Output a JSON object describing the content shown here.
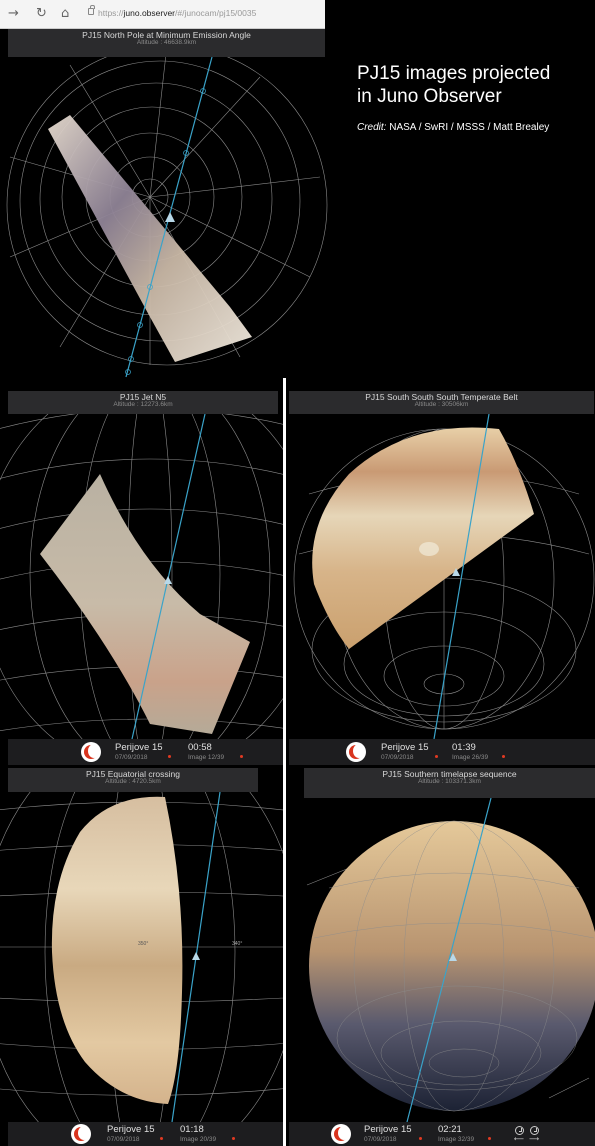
{
  "browser": {
    "back_icon": "→",
    "reload_icon": "↻",
    "home_icon": "⌂",
    "url_scheme": "https://",
    "url_host": "juno.observer",
    "url_path": "/#/junocam/pj15/0035"
  },
  "annotation": {
    "title_line1": "PJ15 images projected",
    "title_line2": "in Juno Observer",
    "credit_label": "Credit:",
    "credit_text": " NASA / SwRI / MSSS / Matt Brealey"
  },
  "panels": [
    {
      "title": "PJ15 North Pole at Minimum Emission Angle",
      "altitude": "Altitude : 46638.9km"
    },
    {
      "title": "PJ15 Jet N5",
      "altitude": "Altitude : 12273.6km",
      "footer": {
        "perijove": "Perijove 15",
        "date": "07/09/2018",
        "time": "00:58",
        "image": "Image 12/39"
      }
    },
    {
      "title": "PJ15 South South South Temperate Belt",
      "altitude": "Altitude : 30506km",
      "footer": {
        "perijove": "Perijove 15",
        "date": "07/09/2018",
        "time": "01:39",
        "image": "Image 26/39"
      }
    },
    {
      "title": "PJ15 Equatorial crossing",
      "altitude": "Altitude : 4720.5km",
      "footer": {
        "perijove": "Perijove 15",
        "date": "07/09/2018",
        "time": "01:18",
        "image": "Image 20/39"
      }
    },
    {
      "title": "PJ15 Southern timelapse sequence",
      "altitude": "Altitude : 103371.3km",
      "footer": {
        "perijove": "Perijove 15",
        "date": "07/09/2018",
        "time": "02:21",
        "image": "Image 32/39"
      }
    }
  ],
  "longitude_labels": {
    "left": "350°",
    "right": "340°"
  },
  "colors": {
    "track": "#3aa3c9",
    "accent": "#e23a22",
    "grid": "#9a9a9a"
  }
}
